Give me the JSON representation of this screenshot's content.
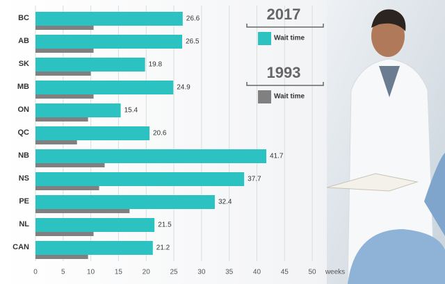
{
  "chart_data": {
    "type": "bar",
    "orientation": "horizontal",
    "categories": [
      "BC",
      "AB",
      "SK",
      "MB",
      "ON",
      "QC",
      "NB",
      "NS",
      "PE",
      "NL",
      "CAN"
    ],
    "series": [
      {
        "name": "Wait time",
        "legend_title": "2017",
        "color": "#2cc2c2",
        "values": [
          26.6,
          26.5,
          19.8,
          24.9,
          15.4,
          20.6,
          41.7,
          37.7,
          32.4,
          21.5,
          21.2
        ],
        "value_labels_shown": true
      },
      {
        "name": "Wait time",
        "legend_title": "1993",
        "color": "#808080",
        "values": [
          10.5,
          10.5,
          10,
          10.5,
          9.5,
          7.5,
          12.5,
          11.5,
          17,
          10.5,
          9.5
        ],
        "value_labels_shown": false
      }
    ],
    "x_label": "weeks",
    "xlim": [
      0,
      52
    ],
    "xticks": [
      0,
      5,
      10,
      15,
      20,
      25,
      30,
      35,
      40,
      45,
      50
    ],
    "grid": true
  }
}
